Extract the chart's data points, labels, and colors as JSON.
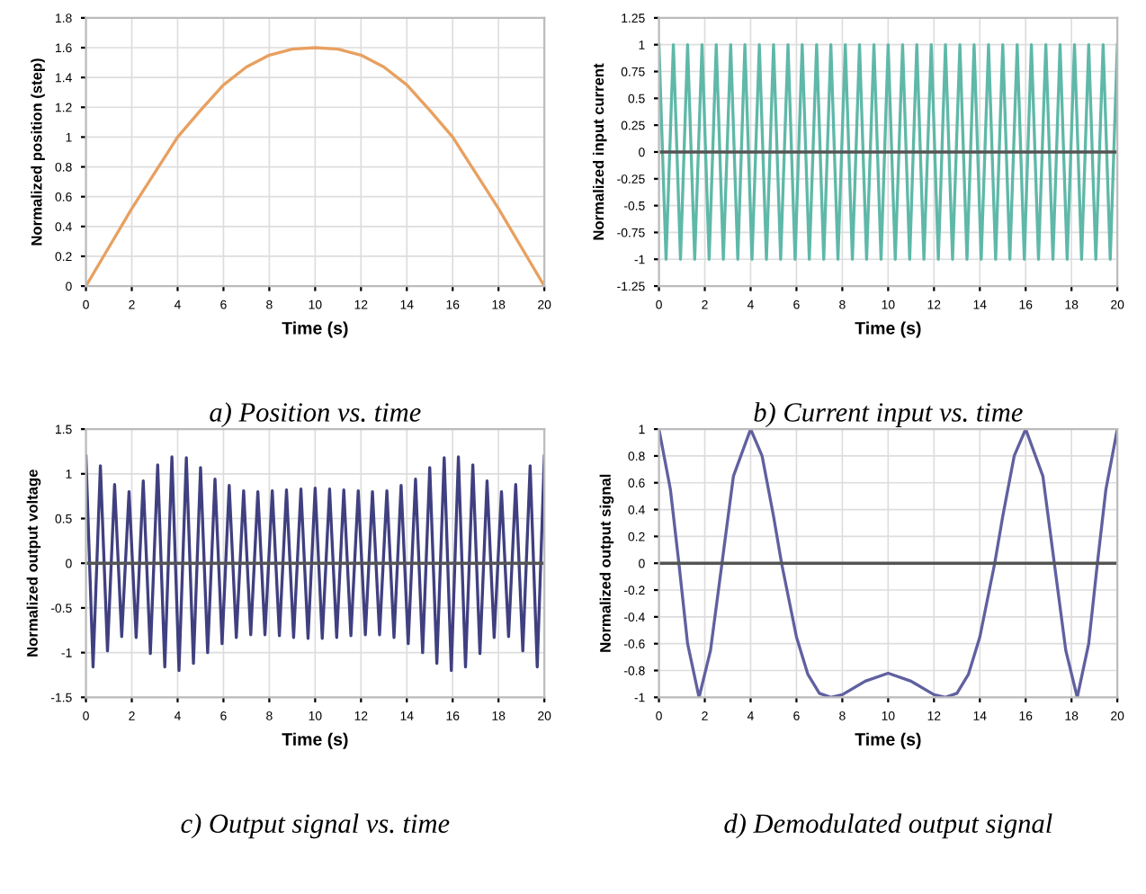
{
  "chart_data": [
    {
      "type": "line",
      "title": "a) Position vs. time",
      "xlabel": "Time (s)",
      "ylabel": "Normalized position (step)",
      "grid": true,
      "xlim": [
        0,
        20
      ],
      "xticks": [
        0,
        2,
        4,
        6,
        8,
        10,
        12,
        14,
        16,
        18,
        20
      ],
      "ylim": [
        0,
        1.8
      ],
      "yticks": [
        0,
        0.2,
        0.4,
        0.6,
        0.8,
        1,
        1.2,
        1.4,
        1.6,
        1.8
      ],
      "series": [
        {
          "color": "#e8a060",
          "x": [
            0,
            1,
            2,
            3,
            4,
            5,
            6,
            7,
            8,
            9,
            10,
            11,
            12,
            13,
            14,
            15,
            16,
            17,
            18,
            19,
            20
          ],
          "values": [
            0,
            0.26,
            0.52,
            0.76,
            1.0,
            1.18,
            1.35,
            1.47,
            1.55,
            1.59,
            1.6,
            1.59,
            1.55,
            1.47,
            1.35,
            1.18,
            1.0,
            0.76,
            0.52,
            0.26,
            0
          ]
        }
      ]
    },
    {
      "type": "line",
      "title": "b) Current input vs. time",
      "xlabel": "Time (s)",
      "ylabel": "Normalized input current",
      "grid": true,
      "xlim": [
        0,
        20
      ],
      "xticks": [
        0,
        2,
        4,
        6,
        8,
        10,
        12,
        14,
        16,
        18,
        20
      ],
      "ylim": [
        -1.25,
        1.25
      ],
      "yticks": [
        -1.25,
        -1,
        -0.75,
        -0.5,
        -0.25,
        0,
        0.25,
        0.5,
        0.75,
        1,
        1.25
      ],
      "ref_lines": [
        {
          "axis": "y",
          "value": 0,
          "color": "#555555"
        }
      ],
      "series": [
        {
          "color": "#5fb8a8",
          "x": [
            0,
            0.31,
            0.63,
            0.94,
            1.25,
            1.56,
            1.88,
            2.19,
            2.5,
            2.81,
            3.13,
            3.44,
            3.75,
            4.06,
            4.38,
            4.69,
            5,
            5.31,
            5.63,
            5.94,
            6.25,
            6.56,
            6.88,
            7.19,
            7.5,
            7.81,
            8.13,
            8.44,
            8.75,
            9.06,
            9.38,
            9.69,
            10,
            10.31,
            10.63,
            10.94,
            11.25,
            11.56,
            11.88,
            12.19,
            12.5,
            12.81,
            13.13,
            13.44,
            13.75,
            14.06,
            14.38,
            14.69,
            15,
            15.31,
            15.63,
            15.94,
            16.25,
            16.56,
            16.88,
            17.19,
            17.5,
            17.81,
            18.13,
            18.44,
            18.75,
            19.06,
            19.38,
            19.69,
            20
          ],
          "values": [
            1,
            -1,
            1,
            -1,
            1,
            -1,
            1,
            -1,
            1,
            -1,
            1,
            -1,
            1,
            -1,
            1,
            -1,
            1,
            -1,
            1,
            -1,
            1,
            -1,
            1,
            -1,
            1,
            -1,
            1,
            -1,
            1,
            -1,
            1,
            -1,
            1,
            -1,
            1,
            -1,
            1,
            -1,
            1,
            -1,
            1,
            -1,
            1,
            -1,
            1,
            -1,
            1,
            -1,
            1,
            -1,
            1,
            -1,
            1,
            -1,
            1,
            -1,
            1,
            -1,
            1,
            -1,
            1,
            -1,
            1,
            -1,
            1
          ]
        }
      ]
    },
    {
      "type": "line",
      "title": "c) Output signal vs. time",
      "xlabel": "Time (s)",
      "ylabel": "Normalized output voltage",
      "grid": true,
      "xlim": [
        0,
        20
      ],
      "xticks": [
        0,
        2,
        4,
        6,
        8,
        10,
        12,
        14,
        16,
        18,
        20
      ],
      "ylim": [
        -1.5,
        1.5
      ],
      "yticks": [
        -1.5,
        -1,
        -0.5,
        0,
        0.5,
        1,
        1.5
      ],
      "ref_lines": [
        {
          "axis": "y",
          "value": 0,
          "color": "#555555"
        }
      ],
      "series": [
        {
          "color": "#404080",
          "x": [
            0,
            0.31,
            0.63,
            0.94,
            1.25,
            1.56,
            1.88,
            2.19,
            2.5,
            2.81,
            3.13,
            3.44,
            3.75,
            4.06,
            4.38,
            4.69,
            5,
            5.31,
            5.63,
            5.94,
            6.25,
            6.56,
            6.88,
            7.19,
            7.5,
            7.81,
            8.13,
            8.44,
            8.75,
            9.06,
            9.38,
            9.69,
            10,
            10.31,
            10.63,
            10.94,
            11.25,
            11.56,
            11.88,
            12.19,
            12.5,
            12.81,
            13.13,
            13.44,
            13.75,
            14.06,
            14.38,
            14.69,
            15,
            15.31,
            15.63,
            15.94,
            16.25,
            16.56,
            16.88,
            17.19,
            17.5,
            17.81,
            18.13,
            18.44,
            18.75,
            19.06,
            19.38,
            19.69,
            20
          ],
          "values": [
            1.2,
            -1.16,
            1.09,
            -0.98,
            0.88,
            -0.82,
            0.8,
            -0.83,
            0.92,
            -1.01,
            1.1,
            -1.16,
            1.19,
            -1.2,
            1.18,
            -1.12,
            1.07,
            -1.0,
            0.94,
            -0.9,
            0.87,
            -0.83,
            0.81,
            -0.8,
            0.8,
            -0.8,
            0.81,
            -0.81,
            0.82,
            -0.83,
            0.83,
            -0.84,
            0.84,
            -0.84,
            0.83,
            -0.83,
            0.82,
            -0.81,
            0.81,
            -0.8,
            0.8,
            -0.8,
            0.81,
            -0.83,
            0.87,
            -0.9,
            0.94,
            -1.0,
            1.07,
            -1.12,
            1.18,
            -1.2,
            1.19,
            -1.16,
            1.1,
            -1.01,
            0.92,
            -0.83,
            0.8,
            -0.82,
            0.88,
            -0.98,
            1.09,
            -1.16,
            1.2
          ]
        }
      ]
    },
    {
      "type": "line",
      "title": "d) Demodulated output signal",
      "xlabel": "Time (s)",
      "ylabel": "Normalized output signal",
      "grid": true,
      "xlim": [
        0,
        20
      ],
      "xticks": [
        0,
        2,
        4,
        6,
        8,
        10,
        12,
        14,
        16,
        18,
        20
      ],
      "ylim": [
        -1,
        1
      ],
      "yticks": [
        -1,
        -0.8,
        -0.6,
        -0.4,
        -0.2,
        0,
        0.2,
        0.4,
        0.6,
        0.8,
        1
      ],
      "ref_lines": [
        {
          "axis": "y",
          "value": 0,
          "color": "#555555"
        }
      ],
      "series": [
        {
          "color": "#6060a0",
          "x": [
            0,
            0.5,
            0.87,
            1.25,
            1.75,
            2.25,
            2.75,
            3.25,
            4,
            4.5,
            5,
            5.35,
            6,
            6.5,
            7,
            7.5,
            8,
            9,
            10,
            11,
            12,
            12.5,
            13,
            13.5,
            14,
            14.65,
            15,
            15.5,
            16,
            16.75,
            17.25,
            17.75,
            18.25,
            18.75,
            19.13,
            19.5,
            20
          ],
          "values": [
            1,
            0.55,
            0,
            -0.6,
            -1,
            -0.65,
            0,
            0.65,
            1,
            0.8,
            0.35,
            0,
            -0.55,
            -0.83,
            -0.97,
            -1,
            -0.98,
            -0.88,
            -0.82,
            -0.88,
            -0.98,
            -1,
            -0.97,
            -0.83,
            -0.55,
            0,
            0.35,
            0.8,
            1,
            0.65,
            0,
            -0.65,
            -1,
            -0.6,
            0,
            0.55,
            1
          ]
        }
      ]
    }
  ]
}
